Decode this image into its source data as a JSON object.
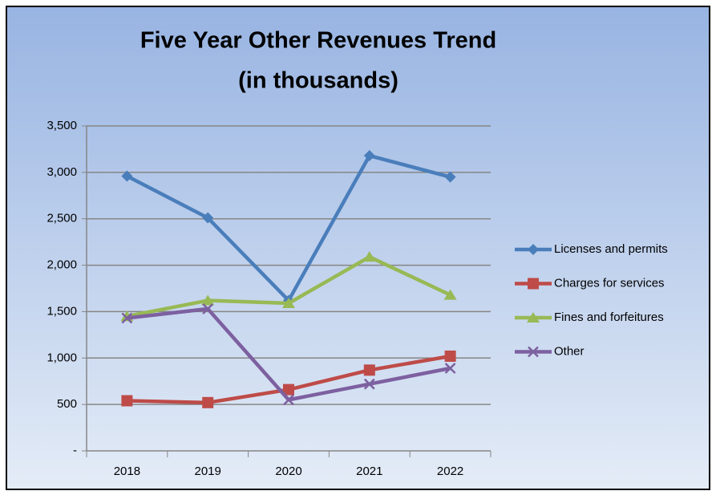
{
  "chart_data": {
    "type": "line",
    "title": "Five Year Other Revenues Trend",
    "subtitle": "(in thousands)",
    "categories": [
      "2018",
      "2019",
      "2020",
      "2021",
      "2022"
    ],
    "series": [
      {
        "name": "Licenses and permits",
        "color": "#4a7ebb",
        "marker": "diamond",
        "values": [
          2960,
          2510,
          1620,
          3180,
          2950
        ]
      },
      {
        "name": "Charges for services",
        "color": "#be4b48",
        "marker": "square",
        "values": [
          540,
          520,
          660,
          870,
          1020
        ]
      },
      {
        "name": "Fines and forfeitures",
        "color": "#98b954",
        "marker": "triangle",
        "values": [
          1450,
          1620,
          1590,
          2090,
          1680
        ]
      },
      {
        "name": "Other",
        "color": "#7d60a0",
        "marker": "x",
        "values": [
          1430,
          1530,
          550,
          720,
          890
        ]
      }
    ],
    "ylim": [
      0,
      3500
    ],
    "yticks": [
      {
        "value": 0,
        "label": "-"
      },
      {
        "value": 500,
        "label": "500"
      },
      {
        "value": 1000,
        "label": "1,000"
      },
      {
        "value": 1500,
        "label": "1,500"
      },
      {
        "value": 2000,
        "label": "2,000"
      },
      {
        "value": 2500,
        "label": "2,500"
      },
      {
        "value": 3000,
        "label": "3,000"
      },
      {
        "value": 3500,
        "label": "3,500"
      }
    ],
    "grid": true,
    "legend": "right"
  }
}
